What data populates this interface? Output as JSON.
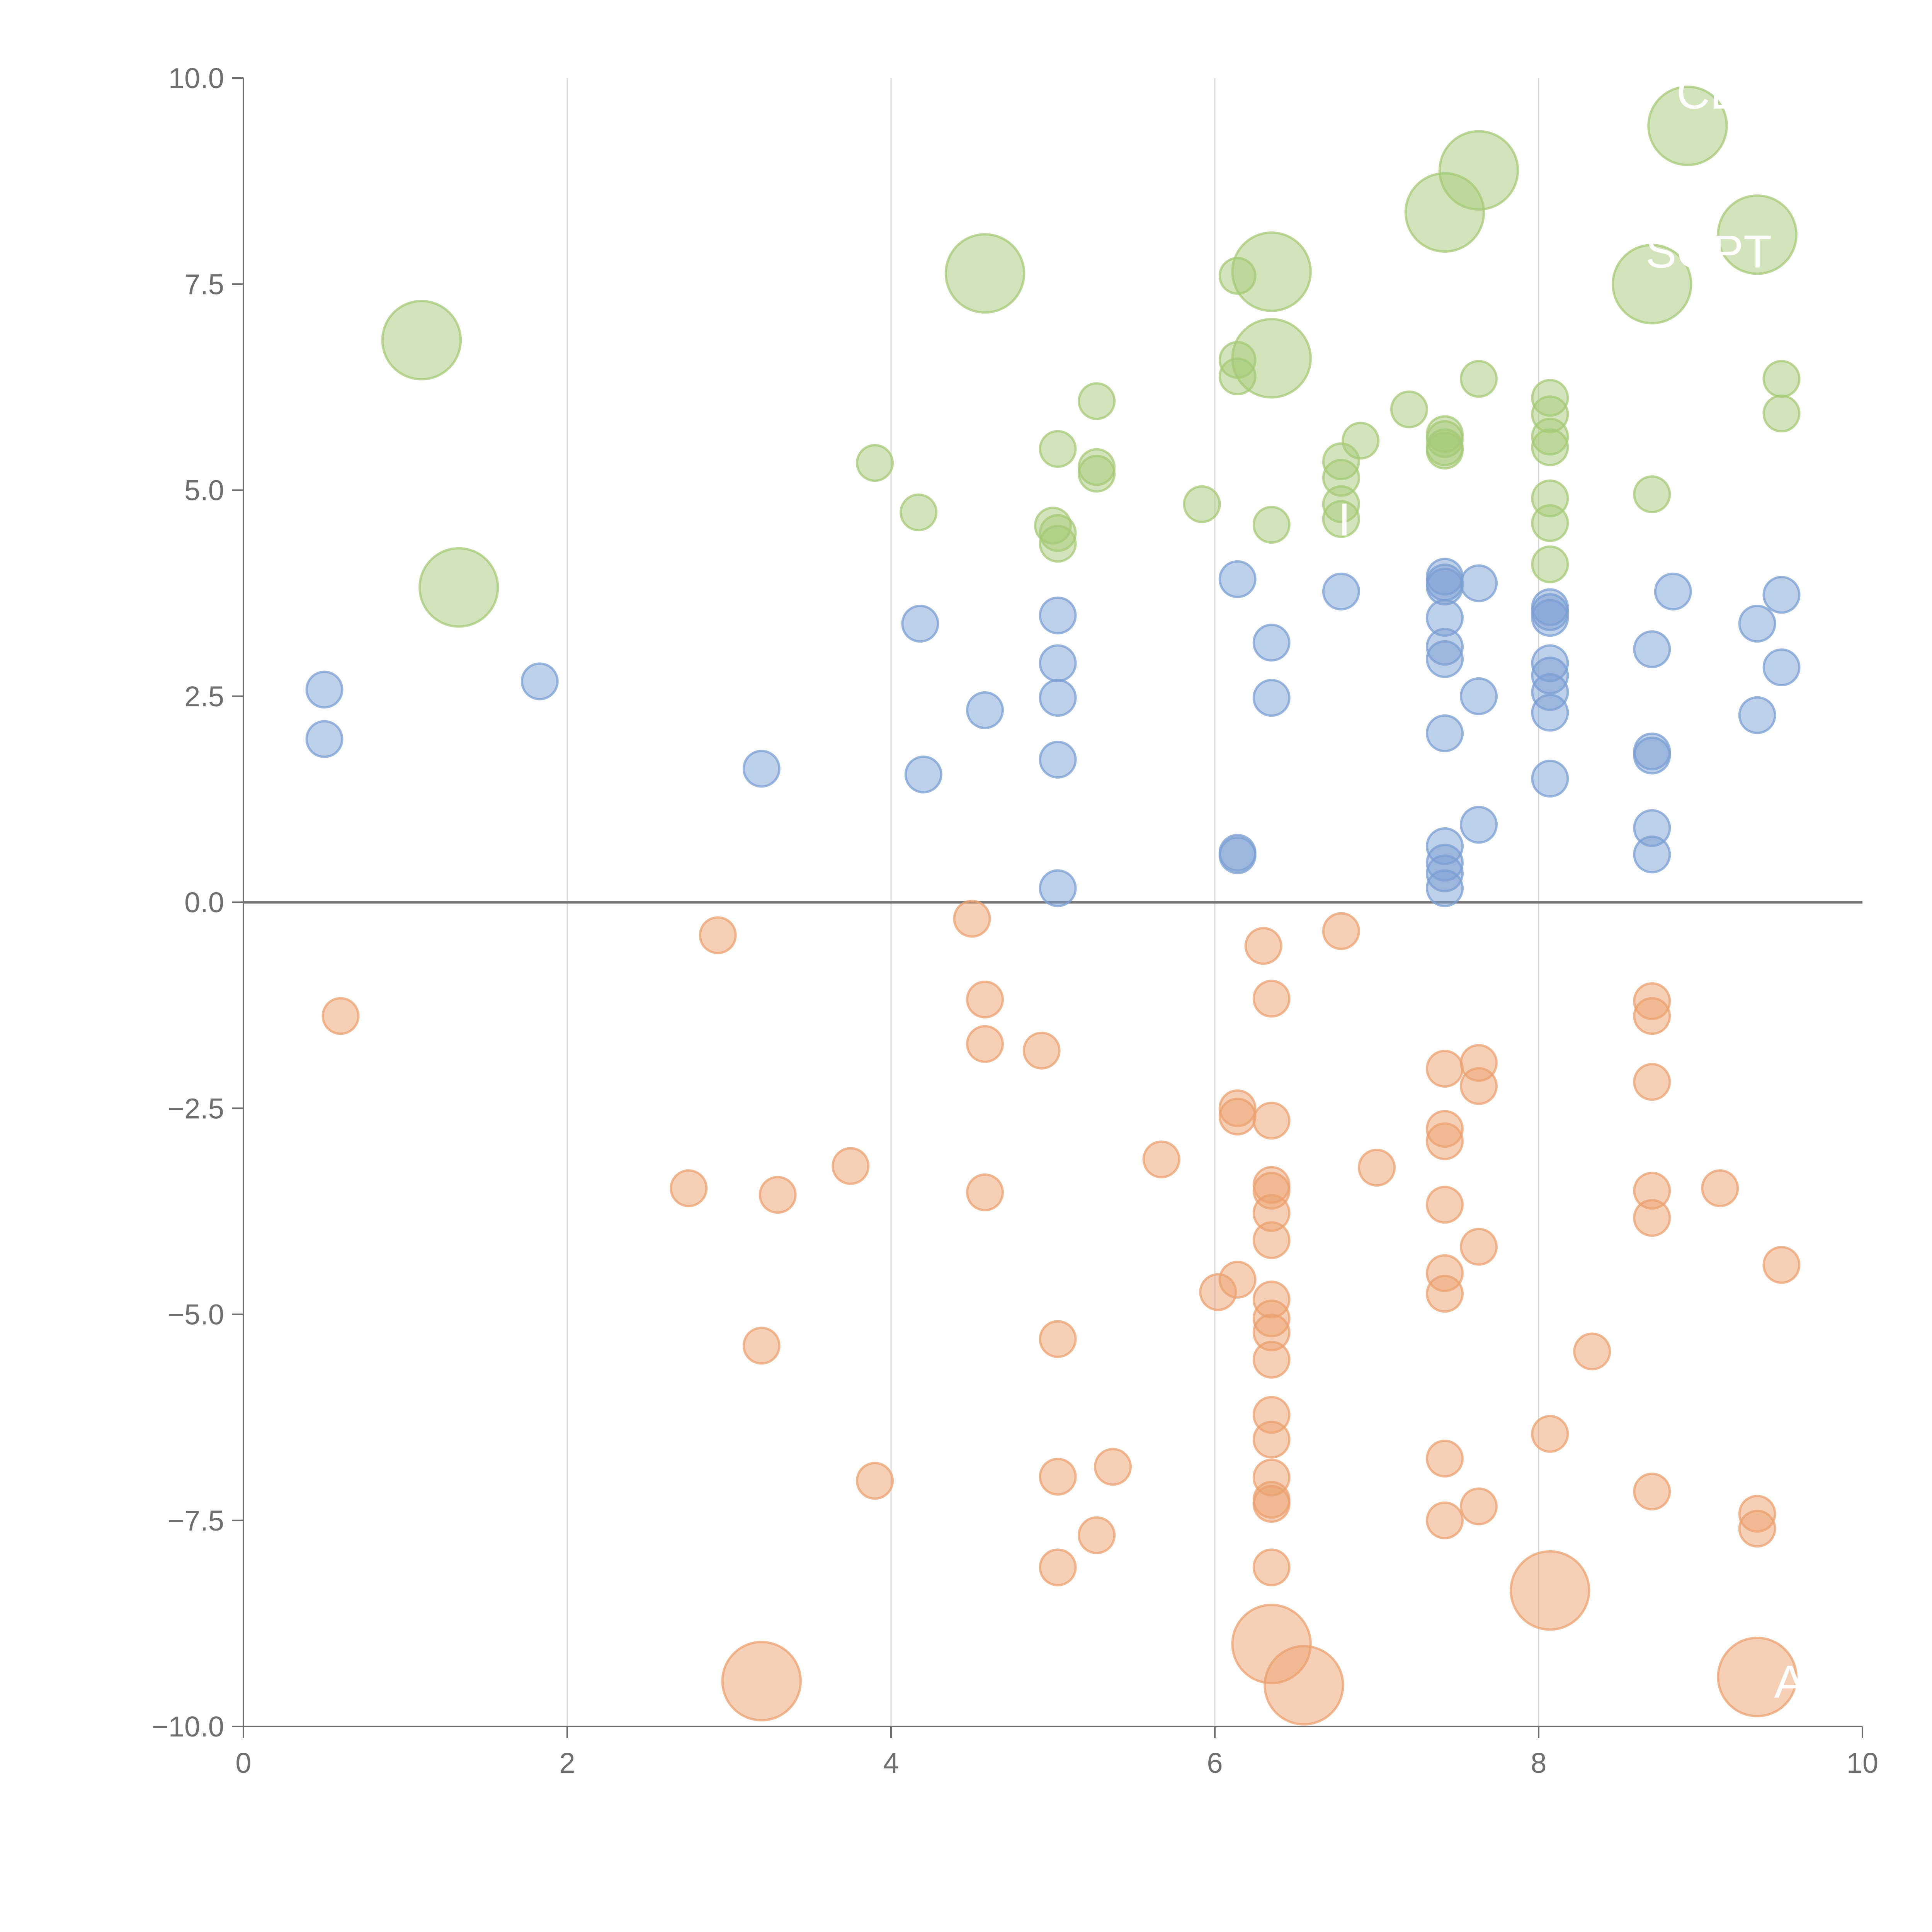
{
  "chart_data": {
    "type": "scatter",
    "title": "",
    "xlabel": "",
    "ylabel": "",
    "xlim": [
      0,
      10
    ],
    "ylim": [
      -10,
      10
    ],
    "grid": "vertical",
    "legend": "none",
    "x_ticks": [
      "0",
      "2",
      "4",
      "6",
      "8",
      "10"
    ],
    "y_ticks": [
      "10.0",
      "7.5",
      "5.0",
      "2.5",
      "0.0",
      "−2.5",
      "−5.0",
      "−7.5",
      "−10.0"
    ],
    "x_tick_values": [
      0,
      2,
      4,
      6,
      8,
      10
    ],
    "y_tick_values": [
      10,
      7.5,
      5,
      2.5,
      0,
      -2.5,
      -5,
      -7.5,
      -10
    ],
    "colors": {
      "blue": "#7b9fd3",
      "orange": "#eba270",
      "green": "#a6c977",
      "axis": "#6e6e6e"
    },
    "series": [
      {
        "color": "#7b9fd3",
        "points": [
          {
            "x": 0.5,
            "y": 2.58,
            "size": 1
          },
          {
            "x": 0.5,
            "y": 1.98,
            "size": 1
          },
          {
            "x": 1.83,
            "y": 2.68,
            "size": 1
          },
          {
            "x": 3.2,
            "y": 1.62,
            "size": 1
          },
          {
            "x": 4.18,
            "y": 3.38,
            "size": 1
          },
          {
            "x": 4.2,
            "y": 1.55,
            "size": 1
          },
          {
            "x": 4.58,
            "y": 2.33,
            "size": 1
          },
          {
            "x": 5.03,
            "y": 3.48,
            "size": 1
          },
          {
            "x": 5.03,
            "y": 2.9,
            "size": 1
          },
          {
            "x": 5.03,
            "y": 2.48,
            "size": 1
          },
          {
            "x": 5.03,
            "y": 1.73,
            "size": 1
          },
          {
            "x": 5.03,
            "y": 0.17,
            "size": 1
          },
          {
            "x": 6.14,
            "y": 3.92,
            "size": 1
          },
          {
            "x": 6.14,
            "y": 0.6,
            "size": 1
          },
          {
            "x": 6.14,
            "y": 0.57,
            "size": 1
          },
          {
            "x": 6.35,
            "y": 3.15,
            "size": 1
          },
          {
            "x": 6.35,
            "y": 2.48,
            "size": 1
          },
          {
            "x": 6.78,
            "y": 3.77,
            "size": 1
          },
          {
            "x": 7.42,
            "y": 3.95,
            "size": 1
          },
          {
            "x": 7.42,
            "y": 3.88,
            "size": 1
          },
          {
            "x": 7.42,
            "y": 3.83,
            "size": 1
          },
          {
            "x": 7.42,
            "y": 3.45,
            "size": 1
          },
          {
            "x": 7.42,
            "y": 3.1,
            "size": 1
          },
          {
            "x": 7.42,
            "y": 2.95,
            "size": 1
          },
          {
            "x": 7.42,
            "y": 2.05,
            "size": 1
          },
          {
            "x": 7.42,
            "y": 0.68,
            "size": 1
          },
          {
            "x": 7.42,
            "y": 0.48,
            "size": 1
          },
          {
            "x": 7.42,
            "y": 0.35,
            "size": 1
          },
          {
            "x": 7.42,
            "y": 0.17,
            "size": 1
          },
          {
            "x": 7.63,
            "y": 3.87,
            "size": 1
          },
          {
            "x": 7.63,
            "y": 2.5,
            "size": 1
          },
          {
            "x": 7.63,
            "y": 0.94,
            "size": 1
          },
          {
            "x": 8.07,
            "y": 3.58,
            "size": 1
          },
          {
            "x": 8.07,
            "y": 3.52,
            "size": 1
          },
          {
            "x": 8.07,
            "y": 3.45,
            "size": 1
          },
          {
            "x": 8.07,
            "y": 2.9,
            "size": 1
          },
          {
            "x": 8.07,
            "y": 2.75,
            "size": 1
          },
          {
            "x": 8.07,
            "y": 2.55,
            "size": 1
          },
          {
            "x": 8.07,
            "y": 2.3,
            "size": 1
          },
          {
            "x": 8.07,
            "y": 1.5,
            "size": 1
          },
          {
            "x": 8.7,
            "y": 3.07,
            "size": 1
          },
          {
            "x": 8.7,
            "y": 1.83,
            "size": 1
          },
          {
            "x": 8.7,
            "y": 1.78,
            "size": 1
          },
          {
            "x": 8.7,
            "y": 0.9,
            "size": 1
          },
          {
            "x": 8.7,
            "y": 0.58,
            "size": 1
          },
          {
            "x": 8.83,
            "y": 3.77,
            "size": 1
          },
          {
            "x": 9.35,
            "y": 3.38,
            "size": 1
          },
          {
            "x": 9.35,
            "y": 2.27,
            "size": 1
          },
          {
            "x": 9.5,
            "y": 3.73,
            "size": 1
          },
          {
            "x": 9.5,
            "y": 2.85,
            "size": 1
          }
        ]
      },
      {
        "color": "#eba270",
        "points": [
          {
            "x": 0.6,
            "y": -1.38,
            "size": 1
          },
          {
            "x": 2.75,
            "y": -3.47,
            "size": 1
          },
          {
            "x": 2.93,
            "y": -0.4,
            "size": 1
          },
          {
            "x": 3.2,
            "y": -5.38,
            "size": 1
          },
          {
            "x": 3.2,
            "y": -9.45,
            "size": 2.2
          },
          {
            "x": 3.3,
            "y": -3.55,
            "size": 1
          },
          {
            "x": 3.75,
            "y": -3.2,
            "size": 1
          },
          {
            "x": 3.9,
            "y": -7.02,
            "size": 1
          },
          {
            "x": 4.5,
            "y": -0.2,
            "size": 1
          },
          {
            "x": 4.58,
            "y": -1.18,
            "size": 1
          },
          {
            "x": 4.58,
            "y": -1.72,
            "size": 1
          },
          {
            "x": 4.58,
            "y": -3.52,
            "size": 1
          },
          {
            "x": 4.93,
            "y": -1.8,
            "size": 1
          },
          {
            "x": 5.03,
            "y": -5.3,
            "size": 1
          },
          {
            "x": 5.03,
            "y": -6.97,
            "size": 1
          },
          {
            "x": 5.03,
            "y": -8.07,
            "size": 1
          },
          {
            "x": 5.27,
            "y": -7.68,
            "size": 1
          },
          {
            "x": 5.37,
            "y": -6.85,
            "size": 1
          },
          {
            "x": 5.67,
            "y": -3.12,
            "size": 1
          },
          {
            "x": 6.02,
            "y": -4.73,
            "size": 1
          },
          {
            "x": 6.14,
            "y": -2.5,
            "size": 1
          },
          {
            "x": 6.14,
            "y": -2.6,
            "size": 1
          },
          {
            "x": 6.14,
            "y": -4.58,
            "size": 1
          },
          {
            "x": 6.3,
            "y": -0.53,
            "size": 1
          },
          {
            "x": 6.35,
            "y": -1.17,
            "size": 1
          },
          {
            "x": 6.35,
            "y": -2.65,
            "size": 1
          },
          {
            "x": 6.35,
            "y": -3.43,
            "size": 1
          },
          {
            "x": 6.35,
            "y": -3.5,
            "size": 1
          },
          {
            "x": 6.35,
            "y": -3.77,
            "size": 1
          },
          {
            "x": 6.35,
            "y": -4.1,
            "size": 1
          },
          {
            "x": 6.35,
            "y": -4.82,
            "size": 1
          },
          {
            "x": 6.35,
            "y": -5.05,
            "size": 1
          },
          {
            "x": 6.35,
            "y": -5.22,
            "size": 1
          },
          {
            "x": 6.35,
            "y": -5.55,
            "size": 1
          },
          {
            "x": 6.35,
            "y": -6.22,
            "size": 1
          },
          {
            "x": 6.35,
            "y": -6.52,
            "size": 1
          },
          {
            "x": 6.35,
            "y": -6.98,
            "size": 1
          },
          {
            "x": 6.35,
            "y": -7.25,
            "size": 1
          },
          {
            "x": 6.35,
            "y": -7.3,
            "size": 1
          },
          {
            "x": 6.35,
            "y": -8.07,
            "size": 1
          },
          {
            "x": 6.35,
            "y": -9.0,
            "size": 2.2
          },
          {
            "x": 6.55,
            "y": -9.5,
            "size": 2.2
          },
          {
            "x": 6.78,
            "y": -0.35,
            "size": 1
          },
          {
            "x": 7.0,
            "y": -3.22,
            "size": 1
          },
          {
            "x": 7.42,
            "y": -2.02,
            "size": 1
          },
          {
            "x": 7.42,
            "y": -2.75,
            "size": 1
          },
          {
            "x": 7.42,
            "y": -2.9,
            "size": 1
          },
          {
            "x": 7.42,
            "y": -3.67,
            "size": 1
          },
          {
            "x": 7.42,
            "y": -4.5,
            "size": 1
          },
          {
            "x": 7.42,
            "y": -4.75,
            "size": 1
          },
          {
            "x": 7.42,
            "y": -6.75,
            "size": 1
          },
          {
            "x": 7.42,
            "y": -7.5,
            "size": 1
          },
          {
            "x": 7.63,
            "y": -1.95,
            "size": 1
          },
          {
            "x": 7.63,
            "y": -2.23,
            "size": 1
          },
          {
            "x": 7.63,
            "y": -4.18,
            "size": 1
          },
          {
            "x": 7.63,
            "y": -7.33,
            "size": 1
          },
          {
            "x": 8.07,
            "y": -6.45,
            "size": 1
          },
          {
            "x": 8.07,
            "y": -8.35,
            "size": 2.2
          },
          {
            "x": 8.33,
            "y": -5.45,
            "size": 1
          },
          {
            "x": 8.7,
            "y": -1.2,
            "size": 1
          },
          {
            "x": 8.7,
            "y": -1.38,
            "size": 1
          },
          {
            "x": 8.7,
            "y": -2.18,
            "size": 1
          },
          {
            "x": 8.7,
            "y": -3.5,
            "size": 1
          },
          {
            "x": 8.7,
            "y": -3.83,
            "size": 1
          },
          {
            "x": 8.7,
            "y": -7.15,
            "size": 1
          },
          {
            "x": 9.12,
            "y": -3.47,
            "size": 1
          },
          {
            "x": 9.35,
            "y": -7.42,
            "size": 1
          },
          {
            "x": 9.35,
            "y": -7.6,
            "size": 1
          },
          {
            "x": 9.35,
            "y": -9.4,
            "size": 2.2
          },
          {
            "x": 9.5,
            "y": -4.4,
            "size": 1
          }
        ]
      },
      {
        "color": "#a6c977",
        "points": [
          {
            "x": 1.1,
            "y": 6.82,
            "size": 2.2
          },
          {
            "x": 1.33,
            "y": 3.82,
            "size": 2.2
          },
          {
            "x": 3.9,
            "y": 5.33,
            "size": 1
          },
          {
            "x": 4.17,
            "y": 4.73,
            "size": 1
          },
          {
            "x": 4.58,
            "y": 7.63,
            "size": 2.2
          },
          {
            "x": 5.0,
            "y": 4.57,
            "size": 1
          },
          {
            "x": 5.03,
            "y": 4.48,
            "size": 1
          },
          {
            "x": 5.03,
            "y": 4.35,
            "size": 1
          },
          {
            "x": 5.03,
            "y": 5.5,
            "size": 1
          },
          {
            "x": 5.27,
            "y": 6.08,
            "size": 1
          },
          {
            "x": 5.27,
            "y": 5.28,
            "size": 1
          },
          {
            "x": 5.27,
            "y": 5.2,
            "size": 1
          },
          {
            "x": 5.92,
            "y": 4.83,
            "size": 1
          },
          {
            "x": 6.14,
            "y": 7.6,
            "size": 1
          },
          {
            "x": 6.14,
            "y": 6.58,
            "size": 1
          },
          {
            "x": 6.14,
            "y": 6.38,
            "size": 1
          },
          {
            "x": 6.35,
            "y": 7.65,
            "size": 2.2
          },
          {
            "x": 6.35,
            "y": 6.6,
            "size": 2.2
          },
          {
            "x": 6.35,
            "y": 4.58,
            "size": 1
          },
          {
            "x": 6.78,
            "y": 5.35,
            "size": 1
          },
          {
            "x": 6.78,
            "y": 5.15,
            "size": 1
          },
          {
            "x": 6.78,
            "y": 4.83,
            "size": 1
          },
          {
            "x": 6.78,
            "y": 4.65,
            "size": 1
          },
          {
            "x": 6.9,
            "y": 5.6,
            "size": 1
          },
          {
            "x": 7.2,
            "y": 5.98,
            "size": 1
          },
          {
            "x": 7.42,
            "y": 8.37,
            "size": 2.2
          },
          {
            "x": 7.42,
            "y": 5.68,
            "size": 1
          },
          {
            "x": 7.42,
            "y": 5.62,
            "size": 1
          },
          {
            "x": 7.42,
            "y": 5.52,
            "size": 1
          },
          {
            "x": 7.42,
            "y": 5.48,
            "size": 1
          },
          {
            "x": 7.63,
            "y": 8.88,
            "size": 2.2
          },
          {
            "x": 7.63,
            "y": 6.35,
            "size": 1
          },
          {
            "x": 8.07,
            "y": 6.12,
            "size": 1
          },
          {
            "x": 8.07,
            "y": 5.92,
            "size": 1
          },
          {
            "x": 8.07,
            "y": 5.65,
            "size": 1
          },
          {
            "x": 8.07,
            "y": 5.52,
            "size": 1
          },
          {
            "x": 8.07,
            "y": 4.9,
            "size": 1
          },
          {
            "x": 8.07,
            "y": 4.6,
            "size": 1
          },
          {
            "x": 8.07,
            "y": 4.1,
            "size": 1
          },
          {
            "x": 8.7,
            "y": 7.5,
            "size": 2.2
          },
          {
            "x": 8.7,
            "y": 4.95,
            "size": 1
          },
          {
            "x": 8.92,
            "y": 9.42,
            "size": 2.2
          },
          {
            "x": 9.35,
            "y": 8.1,
            "size": 2.2
          },
          {
            "x": 9.5,
            "y": 6.35,
            "size": 1
          },
          {
            "x": 9.5,
            "y": 5.93,
            "size": 1
          }
        ]
      }
    ],
    "annotations": [
      {
        "text": "CE",
        "x": 9.05,
        "y": 9.63
      },
      {
        "text": "SOPT",
        "x": 9.05,
        "y": 7.7
      },
      {
        "text": "A",
        "x": 9.55,
        "y": -9.65
      },
      {
        "text": "I",
        "x": 6.8,
        "y": 4.45
      }
    ]
  }
}
